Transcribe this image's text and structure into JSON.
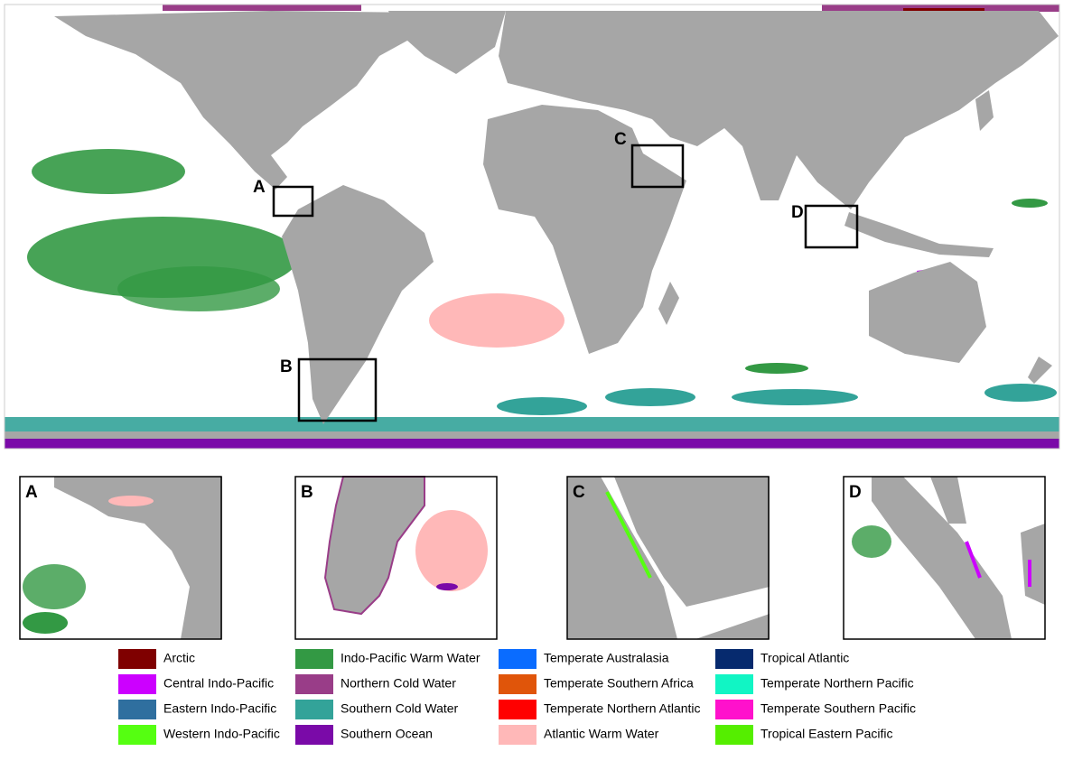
{
  "map": {
    "boxes": [
      {
        "label": "A"
      },
      {
        "label": "B"
      },
      {
        "label": "C"
      },
      {
        "label": "D"
      }
    ],
    "insets": [
      {
        "label": "A"
      },
      {
        "label": "B"
      },
      {
        "label": "C"
      },
      {
        "label": "D"
      }
    ],
    "legend": [
      {
        "name": "Arctic",
        "color": "#7f0000"
      },
      {
        "name": "Central Indo-Pacific",
        "color": "#cc00ff"
      },
      {
        "name": "Eastern Indo-Pacific",
        "color": "#2f6f9f"
      },
      {
        "name": "Western Indo-Pacific",
        "color": "#55ff11"
      },
      {
        "name": "Indo-Pacific Warm Water",
        "color": "#339944"
      },
      {
        "name": "Northern Cold Water",
        "color": "#993d88"
      },
      {
        "name": "Southern Cold Water",
        "color": "#33a399"
      },
      {
        "name": "Southern Ocean",
        "color": "#7a0aa8"
      },
      {
        "name": "Temperate Australasia",
        "color": "#0a6cff"
      },
      {
        "name": "Temperate Southern Africa",
        "color": "#e0550a"
      },
      {
        "name": "Temperate Northern Atlantic",
        "color": "#ff0000"
      },
      {
        "name": "Atlantic Warm Water",
        "color": "#ffb8b8"
      },
      {
        "name": "Tropical Atlantic",
        "color": "#062a6e"
      },
      {
        "name": "Temperate Northern Pacific",
        "color": "#11f5c4"
      },
      {
        "name": "Temperate Southern Pacific",
        "color": "#ff11cc"
      },
      {
        "name": "Tropical Eastern Pacific",
        "color": "#55ee00"
      }
    ]
  }
}
